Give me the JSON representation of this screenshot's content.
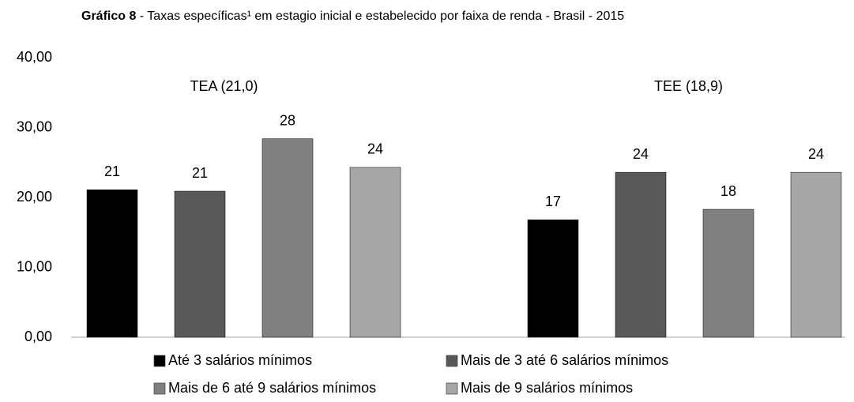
{
  "chart_data": {
    "type": "bar",
    "title_bold": "Gráfico 8",
    "title": " - Taxas específicas¹ em estagio inicial e estabelecido por faixa de renda - Brasil - 2015",
    "categories": [
      "TEA (21,0)",
      "TEE (18,9)"
    ],
    "series": [
      {
        "name": "Até 3 salários mínimos",
        "color": "#000000",
        "values": [
          21.1,
          16.8
        ],
        "value_labels": [
          "21",
          "17"
        ]
      },
      {
        "name": "Mais de 3 até 6 salários mínimos",
        "color": "#595959",
        "values": [
          20.9,
          23.6
        ],
        "value_labels": [
          "21",
          "24"
        ]
      },
      {
        "name": "Mais de 6 até 9 salários mínimos",
        "color": "#808080",
        "values": [
          28.4,
          18.3
        ],
        "value_labels": [
          "28",
          "18"
        ]
      },
      {
        "name": "Mais de 9 salários mínimos",
        "color": "#a6a6a6",
        "values": [
          24.3,
          23.6
        ],
        "value_labels": [
          "24",
          "24"
        ]
      }
    ],
    "ylim": [
      0,
      40
    ],
    "yticks": [
      {
        "value": 0,
        "label": "0,00"
      },
      {
        "value": 10,
        "label": "10,00"
      },
      {
        "value": 20,
        "label": "20,00"
      },
      {
        "value": 30,
        "label": "30,00"
      },
      {
        "value": 40,
        "label": "40,00"
      }
    ],
    "grid": false
  }
}
